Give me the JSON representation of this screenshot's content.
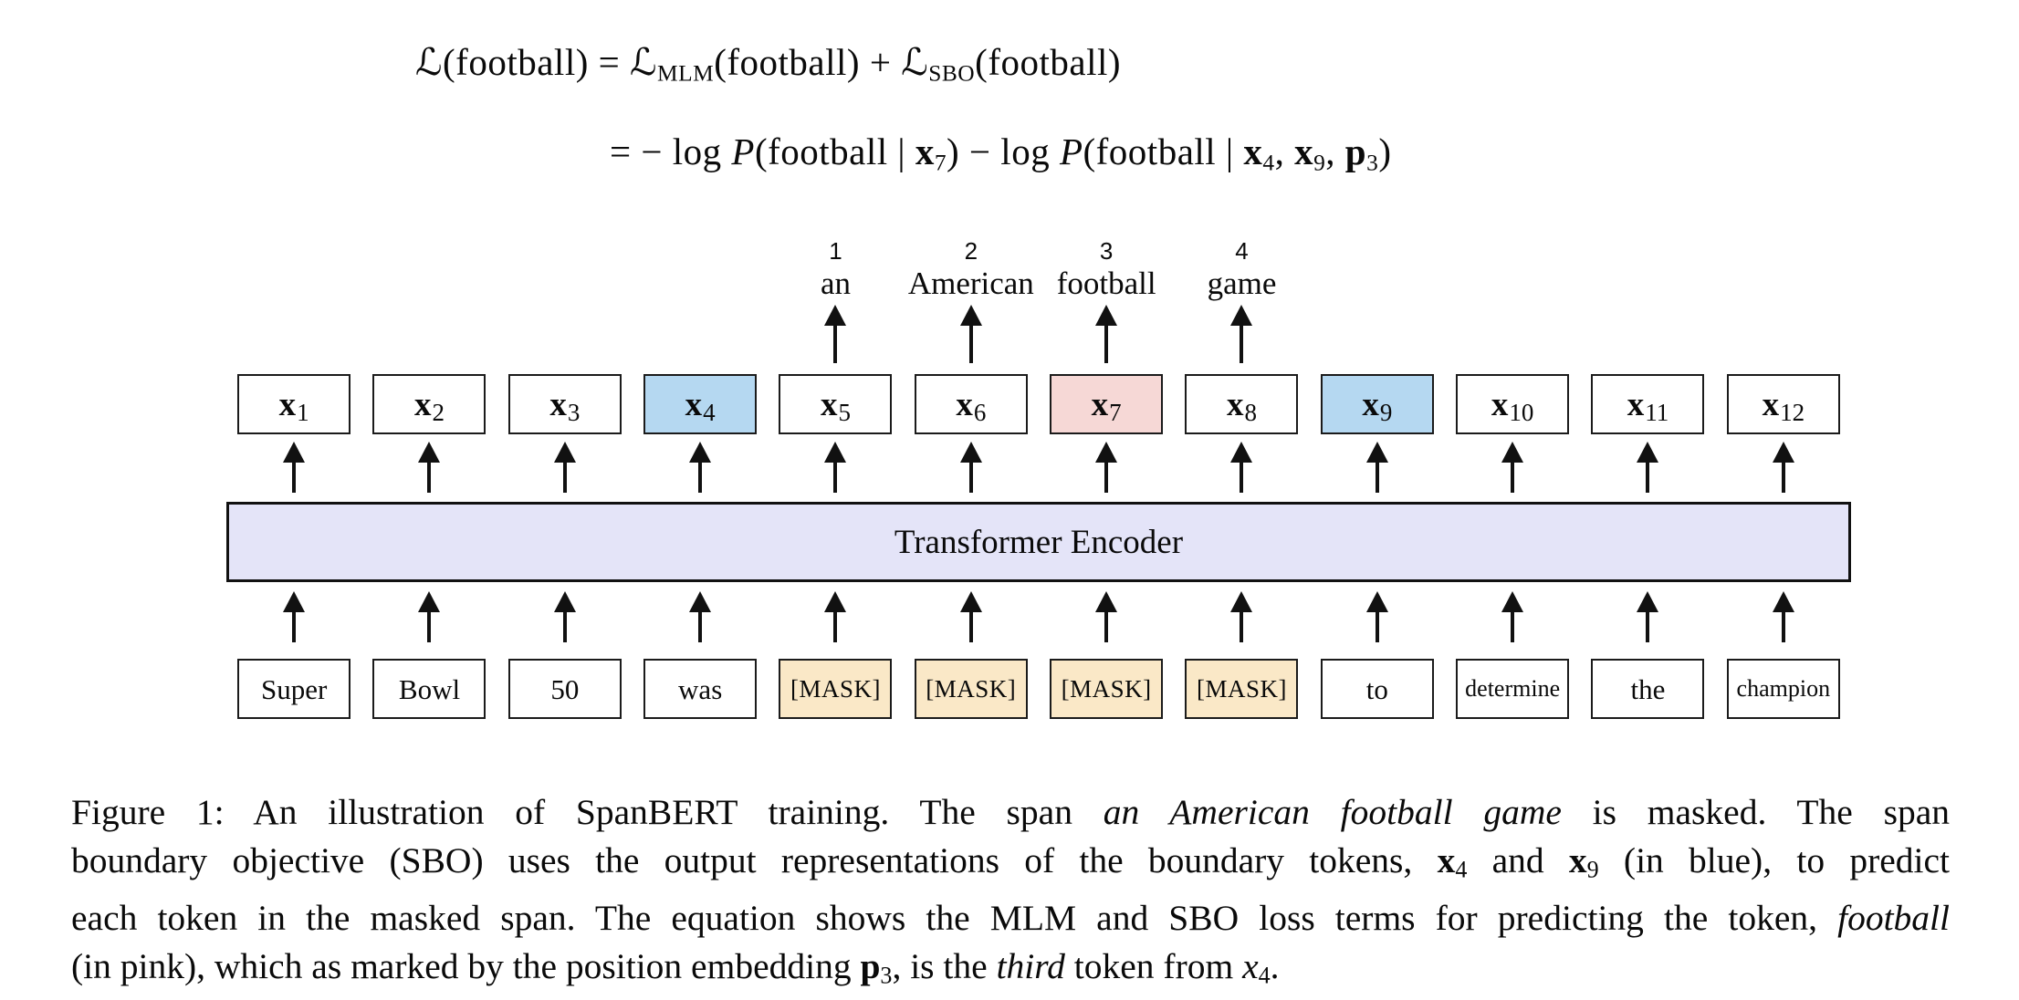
{
  "figure": {
    "equation": {
      "line1": [
        {
          "t": "ℒ",
          "c": "scr"
        },
        {
          "t": "(football) = "
        },
        {
          "t": "ℒ",
          "c": "scr"
        },
        {
          "t": "MLM",
          "c": "sub"
        },
        {
          "t": "(football) + "
        },
        {
          "t": "ℒ",
          "c": "scr"
        },
        {
          "t": "SBO",
          "c": "sub"
        },
        {
          "t": "(football)"
        }
      ],
      "line2": [
        {
          "t": "= − log "
        },
        {
          "t": "P",
          "c": "it"
        },
        {
          "t": "(football | "
        },
        {
          "t": "x",
          "c": "bv"
        },
        {
          "t": "7",
          "c": "sub"
        },
        {
          "t": ") − log "
        },
        {
          "t": "P",
          "c": "it"
        },
        {
          "t": "(football | "
        },
        {
          "t": "x",
          "c": "bv"
        },
        {
          "t": "4",
          "c": "sub"
        },
        {
          "t": ", "
        },
        {
          "t": "x",
          "c": "bv"
        },
        {
          "t": "9",
          "c": "sub"
        },
        {
          "t": ", "
        },
        {
          "t": "p",
          "c": "bv"
        },
        {
          "t": "3",
          "c": "sub"
        },
        {
          "t": ")"
        }
      ]
    },
    "outputs": [
      {
        "num": "1",
        "word": "an"
      },
      {
        "num": "2",
        "word": "American"
      },
      {
        "num": "3",
        "word": "football"
      },
      {
        "num": "4",
        "word": "game"
      }
    ],
    "x_tokens": [
      {
        "base": "x",
        "sub": "1",
        "fill": "#FFFFFF"
      },
      {
        "base": "x",
        "sub": "2",
        "fill": "#FFFFFF"
      },
      {
        "base": "x",
        "sub": "3",
        "fill": "#FFFFFF"
      },
      {
        "base": "x",
        "sub": "4",
        "fill": "#B5D8F1"
      },
      {
        "base": "x",
        "sub": "5",
        "fill": "#FFFFFF"
      },
      {
        "base": "x",
        "sub": "6",
        "fill": "#FFFFFF"
      },
      {
        "base": "x",
        "sub": "7",
        "fill": "#F6D8D6"
      },
      {
        "base": "x",
        "sub": "8",
        "fill": "#FFFFFF"
      },
      {
        "base": "x",
        "sub": "9",
        "fill": "#B5D8F1"
      },
      {
        "base": "x",
        "sub": "10",
        "fill": "#FFFFFF"
      },
      {
        "base": "x",
        "sub": "11",
        "fill": "#FFFFFF"
      },
      {
        "base": "x",
        "sub": "12",
        "fill": "#FFFFFF"
      }
    ],
    "encoder_label": "Transformer Encoder",
    "input_tokens": [
      {
        "label": "Super",
        "masked": false
      },
      {
        "label": "Bowl",
        "masked": false
      },
      {
        "label": "50",
        "masked": false
      },
      {
        "label": "was",
        "masked": false
      },
      {
        "label": "[MASK]",
        "masked": true
      },
      {
        "label": "[MASK]",
        "masked": true
      },
      {
        "label": "[MASK]",
        "masked": true
      },
      {
        "label": "[MASK]",
        "masked": true
      },
      {
        "label": "to",
        "masked": false
      },
      {
        "label": "determine",
        "masked": false
      },
      {
        "label": "the",
        "masked": false
      },
      {
        "label": "champion",
        "masked": false
      }
    ]
  },
  "caption": {
    "line1": [
      {
        "t": "Figure 1: An illustration of SpanBERT training. The span "
      },
      {
        "t": "an American football game",
        "c": "it"
      },
      {
        "t": " is masked. The span"
      }
    ],
    "line2": [
      {
        "t": "boundary objective (SBO) uses the output representations of the boundary tokens, "
      },
      {
        "t": "x",
        "c": "bv"
      },
      {
        "t": "4",
        "c": "sub"
      },
      {
        "t": " and "
      },
      {
        "t": "x",
        "c": "bv"
      },
      {
        "t": "9",
        "c": "sub"
      },
      {
        "t": " (in blue), to predict"
      }
    ],
    "line3": [
      {
        "t": "each token in the masked span. The equation shows the MLM and SBO loss terms for predicting the token, "
      },
      {
        "t": "football",
        "c": "it"
      }
    ],
    "line4": [
      {
        "t": "(in pink), which as marked by the position embedding "
      },
      {
        "t": "p",
        "c": "bv"
      },
      {
        "t": "3",
        "c": "sub"
      },
      {
        "t": ", is the "
      },
      {
        "t": "third",
        "c": "it"
      },
      {
        "t": " token from "
      },
      {
        "t": "x",
        "c": "mi"
      },
      {
        "t": "4",
        "c": "sub"
      },
      {
        "t": "."
      }
    ]
  },
  "colors": {
    "boundary_token_blue": "#B5D8F1",
    "target_token_pink": "#F6D8D6",
    "mask_token_cream": "#FAE8C7",
    "encoder_lavender": "#E4E4F8",
    "box_border": "#1B1B1B",
    "background": "#FFFFFF"
  }
}
